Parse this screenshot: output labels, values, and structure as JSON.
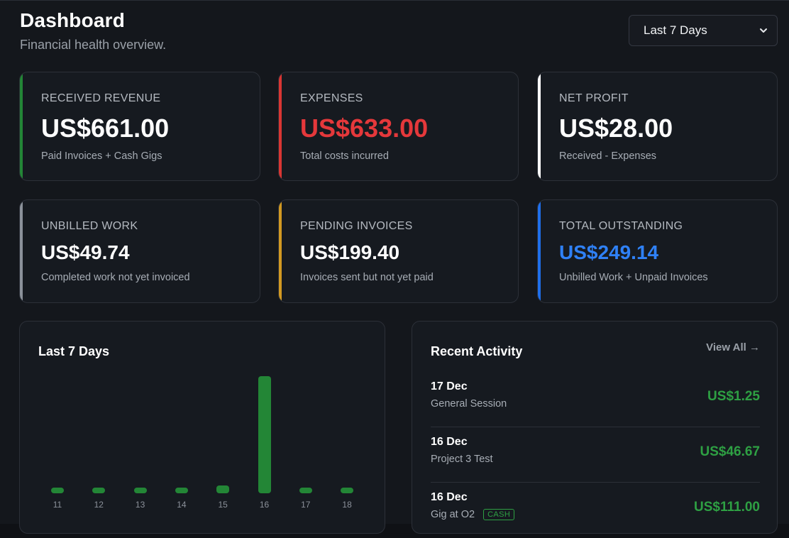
{
  "header": {
    "title": "Dashboard",
    "subtitle": "Financial health overview.",
    "range_select": {
      "selected": "Last 7 Days"
    }
  },
  "cards": [
    {
      "label": "RECEIVED REVENUE",
      "value": "US$661.00",
      "sub": "Paid Invoices + Cash Gigs",
      "accent": "#238636",
      "value_color": "#ffffff"
    },
    {
      "label": "EXPENSES",
      "value": "US$633.00",
      "sub": "Total costs incurred",
      "accent": "#da3633",
      "value_color": "#e5383b"
    },
    {
      "label": "NET PROFIT",
      "value": "US$28.00",
      "sub": "Received - Expenses",
      "accent": "#ffffff",
      "value_color": "#ffffff"
    },
    {
      "label": "UNBILLED WORK",
      "value": "US$49.74",
      "sub": "Completed work not yet invoiced",
      "accent": "#8b919a",
      "value_color": "#ffffff"
    },
    {
      "label": "PENDING INVOICES",
      "value": "US$199.40",
      "sub": "Invoices sent but not yet paid",
      "accent": "#d29922",
      "value_color": "#ffffff"
    },
    {
      "label": "TOTAL OUTSTANDING",
      "value": "US$249.14",
      "sub": "Unbilled Work + Unpaid Invoices",
      "accent": "#1f6feb",
      "value_color": "#2f81f7"
    }
  ],
  "chart_panel": {
    "title": "Last 7 Days"
  },
  "chart_data": {
    "type": "bar",
    "categories": [
      "11",
      "12",
      "13",
      "14",
      "15",
      "16",
      "17",
      "18"
    ],
    "values": [
      0,
      0,
      0,
      0,
      46.67,
      711.0,
      0,
      0
    ],
    "title": "Last 7 Days",
    "xlabel": "",
    "ylabel": "",
    "ylim": [
      0,
      711.0
    ],
    "grid": false,
    "legend": "none",
    "color": "#238636"
  },
  "activity": {
    "title": "Recent Activity",
    "view_all": "View All →",
    "items": [
      {
        "date": "17 Dec",
        "desc": "General Session",
        "amount": "US$1.25",
        "badge": ""
      },
      {
        "date": "16 Dec",
        "desc": "Project 3 Test",
        "amount": "US$46.67",
        "badge": ""
      },
      {
        "date": "16 Dec",
        "desc": "Gig at O2",
        "amount": "US$111.00",
        "badge": "CASH"
      }
    ]
  },
  "icons": {
    "select_chevron": "chevron-down-icon"
  }
}
